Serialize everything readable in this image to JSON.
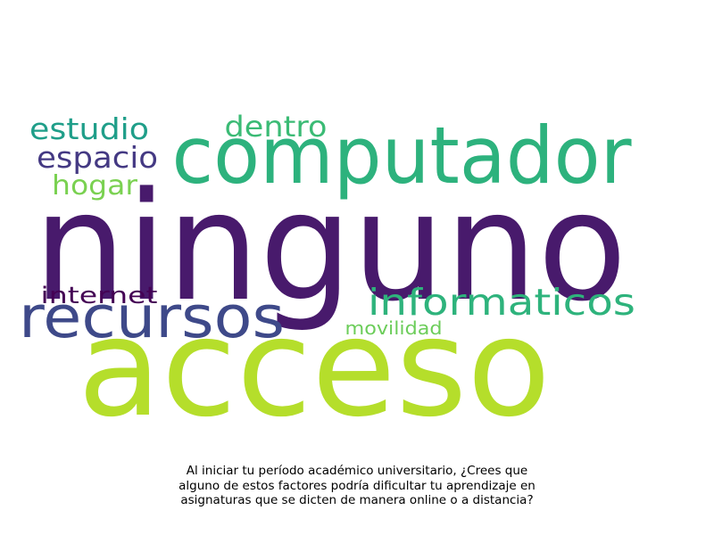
{
  "caption": "Al iniciar tu período académico universitario, ¿Crees que\nalguno de estos factores podría dificultar tu aprendizaje en\nasignaturas que se dicten de manera online o a distancia?",
  "words": [
    {
      "text": "ninguno",
      "color": "#481a6c"
    },
    {
      "text": "acceso",
      "color": "#b5de2b"
    },
    {
      "text": "computador",
      "color": "#2db27d"
    },
    {
      "text": "recursos",
      "color": "#3e4989"
    },
    {
      "text": "informaticos",
      "color": "#2eb37c"
    },
    {
      "text": "estudio",
      "color": "#1f9e89"
    },
    {
      "text": "espacio",
      "color": "#443983"
    },
    {
      "text": "dentro",
      "color": "#3bbb75"
    },
    {
      "text": "hogar",
      "color": "#7ad151"
    },
    {
      "text": "internet",
      "color": "#440154"
    },
    {
      "text": "movilidad",
      "color": "#6ccd5a"
    }
  ]
}
